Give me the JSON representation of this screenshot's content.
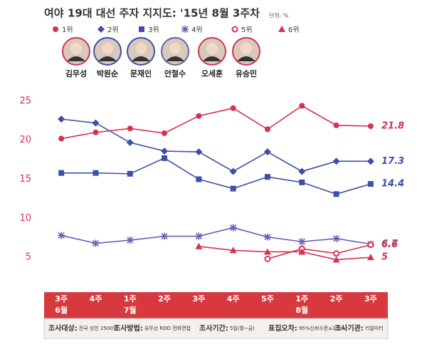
{
  "chart_data": {
    "type": "line",
    "title": "여야 19대 대선 주자 지지도: '15년 8월 3주차",
    "subtitle": "단위: %",
    "categories": [
      "3주",
      "4주",
      "1주",
      "2주",
      "3주",
      "4주",
      "5주",
      "1주",
      "2주",
      "3주"
    ],
    "months": [
      "6월",
      null,
      "7월",
      null,
      null,
      null,
      null,
      "8월",
      null,
      null
    ],
    "ylim": [
      1,
      27
    ],
    "yticks": [
      5,
      10,
      15,
      20,
      25
    ],
    "grid": false,
    "series": [
      {
        "name": "1위",
        "person": "김무성",
        "color": "#d6334e",
        "marker": "circle",
        "values": [
          20.2,
          21.0,
          21.5,
          20.9,
          23.1,
          24.1,
          21.4,
          24.4,
          21.9,
          21.8
        ]
      },
      {
        "name": "2위",
        "person": "박원순",
        "color": "#3d4fa8",
        "marker": "diamond",
        "values": [
          22.7,
          22.2,
          19.7,
          18.6,
          18.5,
          16.0,
          18.5,
          16.0,
          17.3,
          17.3
        ]
      },
      {
        "name": "3위",
        "person": "문재인",
        "color": "#3d4fa8",
        "marker": "square",
        "values": [
          15.8,
          15.8,
          15.7,
          17.7,
          15.0,
          13.8,
          15.3,
          14.6,
          13.1,
          14.4
        ]
      },
      {
        "name": "4위",
        "person": "안철수",
        "color": "#6b5fb5",
        "marker": "asterisk",
        "values": [
          7.8,
          6.8,
          7.2,
          7.7,
          7.7,
          8.8,
          7.6,
          7.0,
          7.4,
          6.7
        ]
      },
      {
        "name": "5위",
        "person": "오세훈",
        "color": "#d6334e",
        "marker": "open-circle",
        "values": [
          null,
          null,
          null,
          null,
          null,
          null,
          4.8,
          6.1,
          5.5,
          6.6
        ]
      },
      {
        "name": "6위",
        "person": "유승민",
        "color": "#d6334e",
        "marker": "triangle",
        "values": [
          null,
          null,
          null,
          null,
          6.4,
          5.9,
          5.7,
          5.7,
          4.7,
          5.0
        ]
      }
    ],
    "footer": [
      {
        "label": "조사대상:",
        "value": "전국 성인 2500명"
      },
      {
        "label": "조사방법:",
        "value": "유무선 RDD 전화면접"
      },
      {
        "label": "조사기간:",
        "value": "5일(월~금)"
      },
      {
        "label": "표집오차:",
        "value": "95%신뢰수준±2.0%"
      },
      {
        "label": "조사기관:",
        "value": "리얼미터"
      }
    ]
  }
}
